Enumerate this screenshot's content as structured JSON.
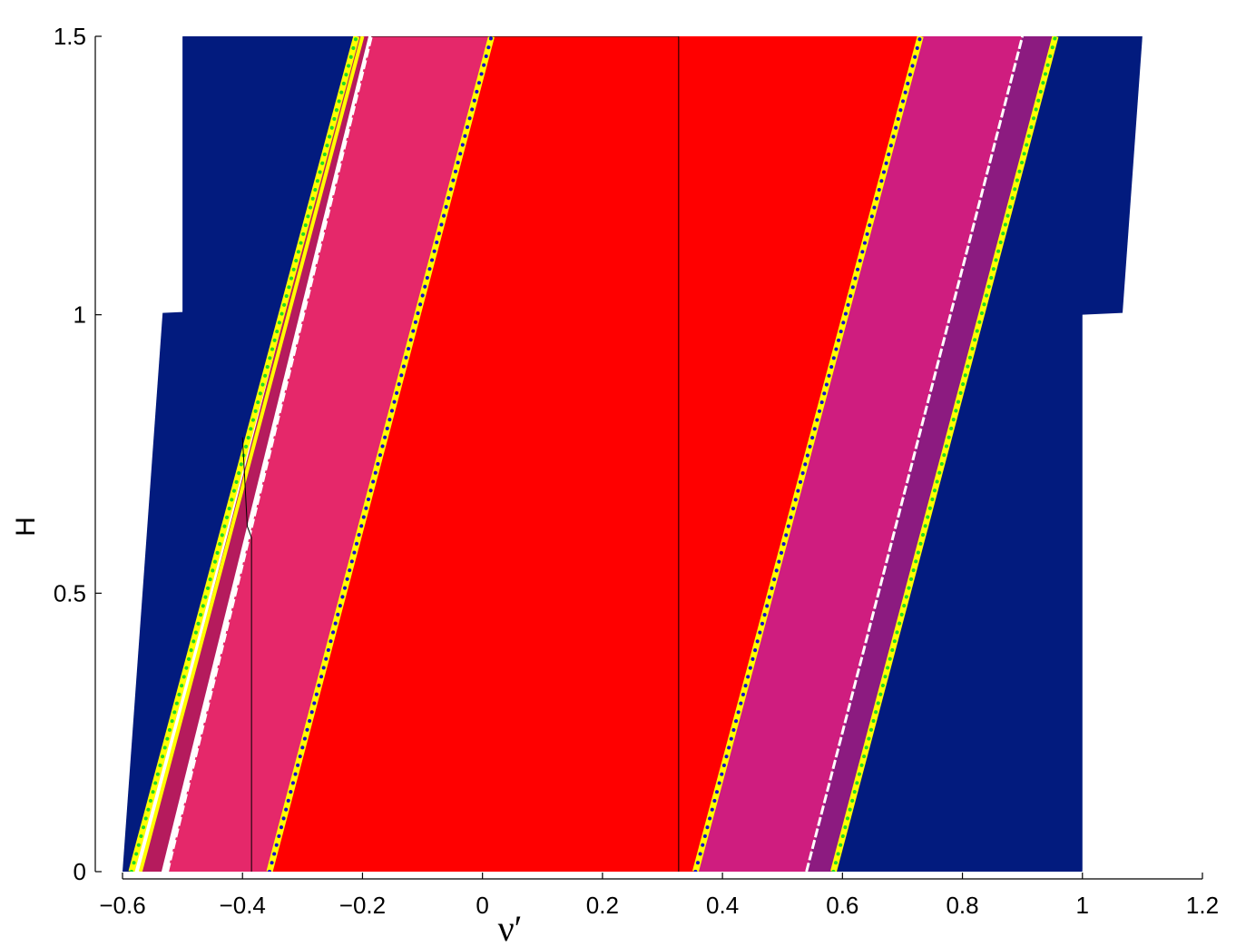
{
  "chart_data": {
    "type": "area",
    "xlabel": "ν′",
    "ylabel": "H",
    "xlim": [
      -0.6,
      1.2
    ],
    "ylim": [
      0,
      1.5
    ],
    "xticks": [
      -0.6,
      -0.4,
      -0.2,
      0,
      0.2,
      0.4,
      0.6,
      0.8,
      1,
      1.2
    ],
    "xtick_labels": [
      "−0.6",
      "−0.4",
      "−0.2",
      "0",
      "0.2",
      "0.4",
      "0.6",
      "0.8",
      "1",
      "1.2"
    ],
    "yticks": [
      0,
      0.5,
      1,
      1.5
    ],
    "ytick_labels": [
      "0",
      "0.5",
      "1",
      "1.5"
    ],
    "grid": false,
    "domain_outline": [
      [
        -0.6,
        0
      ],
      [
        -0.6,
        1.0
      ],
      [
        -0.5,
        1.005
      ],
      [
        -0.5,
        1.5
      ],
      [
        1.1,
        1.5
      ],
      [
        1.1,
        1.005
      ],
      [
        1.0,
        1.0
      ],
      [
        1.0,
        0
      ]
    ],
    "regions": [
      {
        "fill": "#021b7e",
        "x_at_H0": [
          -0.6,
          -0.585
        ],
        "x_at_H15": [
          -0.5,
          -0.215
        ]
      },
      {
        "fill": "#b51b5d",
        "x_at_H0": [
          -0.57,
          -0.535
        ],
        "x_at_H15": [
          -0.21,
          -0.19
        ]
      },
      {
        "fill": "#e5286a",
        "x_at_H0": [
          -0.525,
          -0.355
        ],
        "x_at_H15": [
          -0.185,
          0.012
        ]
      },
      {
        "fill": "#ff0000",
        "x_at_H0": [
          -0.35,
          0.36
        ],
        "x_at_H15": [
          0.015,
          0.73
        ]
      },
      {
        "fill": "#cf1d7f",
        "x_at_H0": [
          0.36,
          0.54
        ],
        "x_at_H15": [
          0.73,
          0.9
        ]
      },
      {
        "fill": "#8c1b80",
        "x_at_H0": [
          0.54,
          0.585
        ],
        "x_at_H15": [
          0.9,
          0.955
        ]
      },
      {
        "fill": "#021b7e",
        "x_at_H0": [
          0.585,
          1.0
        ],
        "x_at_H15": [
          0.955,
          1.1
        ]
      }
    ],
    "boundary_lines": [
      {
        "style": "yellow-green-dots",
        "points": [
          [
            -0.585,
            0
          ],
          [
            -0.21,
            1.5
          ]
        ]
      },
      {
        "style": "yellow",
        "points": [
          [
            -0.57,
            0
          ],
          [
            -0.2,
            1.5
          ]
        ]
      },
      {
        "style": "white",
        "points": [
          [
            -0.525,
            0
          ],
          [
            -0.185,
            1.5
          ]
        ]
      },
      {
        "style": "yellow-blue-dots",
        "points": [
          [
            -0.355,
            0
          ],
          [
            0.015,
            1.5
          ]
        ]
      },
      {
        "style": "yellow-blue-dots",
        "points": [
          [
            0.355,
            0
          ],
          [
            0.73,
            1.5
          ]
        ]
      },
      {
        "style": "white",
        "points": [
          [
            0.54,
            0
          ],
          [
            0.9,
            1.5
          ]
        ]
      },
      {
        "style": "yellow-green-dots",
        "points": [
          [
            0.585,
            0
          ],
          [
            0.955,
            1.5
          ]
        ]
      }
    ],
    "black_lines": [
      {
        "points": [
          [
            -0.4,
            0.78
          ],
          [
            -0.392,
            0.62
          ],
          [
            -0.385,
            0.6
          ],
          [
            -0.385,
            0
          ]
        ]
      },
      {
        "points": [
          [
            0.327,
            0
          ],
          [
            0.327,
            1.5
          ]
        ]
      },
      {
        "points": [
          [
            -0.185,
            1.5
          ],
          [
            0.327,
            1.5
          ]
        ]
      }
    ]
  }
}
